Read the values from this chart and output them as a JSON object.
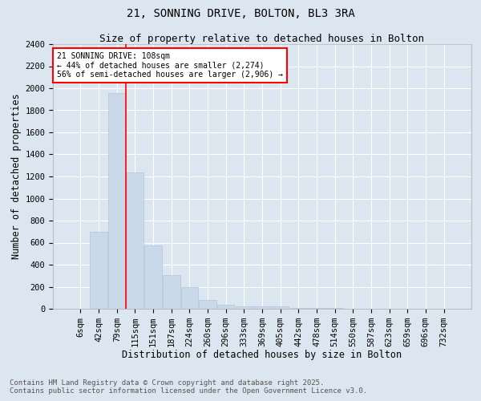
{
  "title_line1": "21, SONNING DRIVE, BOLTON, BL3 3RA",
  "title_line2": "Size of property relative to detached houses in Bolton",
  "xlabel": "Distribution of detached houses by size in Bolton",
  "ylabel": "Number of detached properties",
  "bar_color": "#c9d9ea",
  "bar_edge_color": "#b0c4d8",
  "plot_bg_color": "#dce6f0",
  "fig_bg_color": "#dce6f0",
  "grid_color": "#ffffff",
  "categories": [
    "6sqm",
    "42sqm",
    "79sqm",
    "115sqm",
    "151sqm",
    "187sqm",
    "224sqm",
    "260sqm",
    "296sqm",
    "333sqm",
    "369sqm",
    "405sqm",
    "442sqm",
    "478sqm",
    "514sqm",
    "550sqm",
    "587sqm",
    "623sqm",
    "659sqm",
    "696sqm",
    "732sqm"
  ],
  "values": [
    0,
    700,
    1960,
    1240,
    575,
    305,
    200,
    80,
    40,
    25,
    25,
    20,
    10,
    8,
    5,
    3,
    2,
    1,
    0,
    0,
    0
  ],
  "ylim": [
    0,
    2400
  ],
  "yticks": [
    0,
    200,
    400,
    600,
    800,
    1000,
    1200,
    1400,
    1600,
    1800,
    2000,
    2200,
    2400
  ],
  "red_line_bar_index": 2,
  "annotation_title": "21 SONNING DRIVE: 108sqm",
  "annotation_line1": "← 44% of detached houses are smaller (2,274)",
  "annotation_line2": "56% of semi-detached houses are larger (2,906) →",
  "footer_line1": "Contains HM Land Registry data © Crown copyright and database right 2025.",
  "footer_line2": "Contains public sector information licensed under the Open Government Licence v3.0.",
  "title_fontsize": 10,
  "subtitle_fontsize": 9,
  "axis_label_fontsize": 8.5,
  "tick_fontsize": 7.5,
  "annotation_fontsize": 7,
  "footer_fontsize": 6.5
}
